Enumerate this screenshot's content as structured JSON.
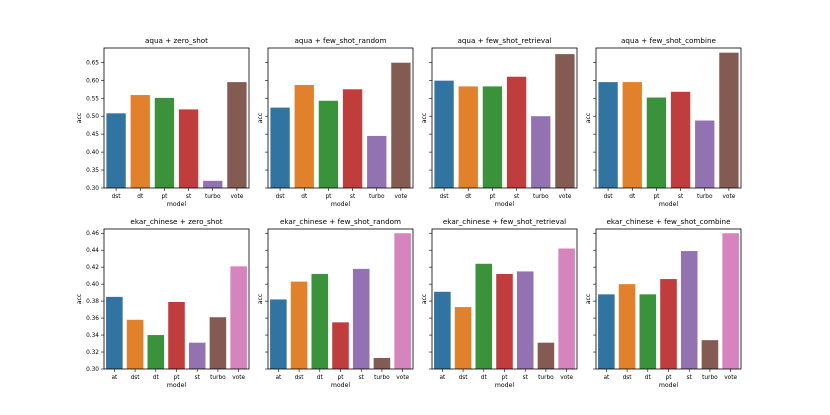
{
  "colors": [
    "#3274a1",
    "#e1812c",
    "#3a923a",
    "#c03d3e",
    "#9372b2",
    "#845b53",
    "#d684bd"
  ],
  "chart_data": [
    {
      "type": "bar",
      "title": "aqua + zero_shot",
      "xlabel": "model",
      "ylabel": "acc",
      "categories": [
        "dst",
        "dt",
        "pt",
        "st",
        "turbo",
        "vote"
      ],
      "values": [
        0.508,
        0.559,
        0.551,
        0.519,
        0.32,
        0.595
      ],
      "ylim": [
        0.3,
        0.69
      ],
      "yticks": [
        0.3,
        0.35,
        0.4,
        0.45,
        0.5,
        0.55,
        0.6,
        0.65
      ],
      "ytick_labels": [
        "0.30",
        "0.35",
        "0.40",
        "0.45",
        "0.50",
        "0.55",
        "0.60",
        "0.65"
      ],
      "show_yticklabels": true
    },
    {
      "type": "bar",
      "title": "aqua + few_shot_random",
      "xlabel": "model",
      "ylabel": "acc",
      "categories": [
        "dst",
        "dt",
        "pt",
        "st",
        "turbo",
        "vote"
      ],
      "values": [
        0.524,
        0.587,
        0.543,
        0.575,
        0.445,
        0.649
      ],
      "ylim": [
        0.3,
        0.69
      ],
      "yticks": [
        0.3,
        0.35,
        0.4,
        0.45,
        0.5,
        0.55,
        0.6,
        0.65
      ],
      "ytick_labels": [
        "0.30",
        "0.35",
        "0.40",
        "0.45",
        "0.50",
        "0.55",
        "0.60",
        "0.65"
      ],
      "show_yticklabels": false
    },
    {
      "type": "bar",
      "title": "aqua + few_shot_retrieval",
      "xlabel": "model",
      "ylabel": "acc",
      "categories": [
        "dst",
        "dt",
        "pt",
        "st",
        "turbo",
        "vote"
      ],
      "values": [
        0.599,
        0.583,
        0.583,
        0.61,
        0.5,
        0.673
      ],
      "ylim": [
        0.3,
        0.69
      ],
      "yticks": [
        0.3,
        0.35,
        0.4,
        0.45,
        0.5,
        0.55,
        0.6,
        0.65
      ],
      "ytick_labels": [
        "0.30",
        "0.35",
        "0.40",
        "0.45",
        "0.50",
        "0.55",
        "0.60",
        "0.65"
      ],
      "show_yticklabels": false
    },
    {
      "type": "bar",
      "title": "aqua + few_shot_combine",
      "xlabel": "model",
      "ylabel": "acc",
      "categories": [
        "dst",
        "dt",
        "pt",
        "st",
        "turbo",
        "vote"
      ],
      "values": [
        0.595,
        0.595,
        0.552,
        0.568,
        0.488,
        0.677
      ],
      "ylim": [
        0.3,
        0.69
      ],
      "yticks": [
        0.3,
        0.35,
        0.4,
        0.45,
        0.5,
        0.55,
        0.6,
        0.65
      ],
      "ytick_labels": [
        "0.30",
        "0.35",
        "0.40",
        "0.45",
        "0.50",
        "0.55",
        "0.60",
        "0.65"
      ],
      "show_yticklabels": false
    },
    {
      "type": "bar",
      "title": "ekar_chinese + zero_shot",
      "xlabel": "model",
      "ylabel": "acc",
      "categories": [
        "at",
        "dst",
        "dt",
        "pt",
        "st",
        "turbo",
        "vote"
      ],
      "values": [
        0.385,
        0.358,
        0.34,
        0.379,
        0.331,
        0.361,
        0.421
      ],
      "ylim": [
        0.3,
        0.465
      ],
      "yticks": [
        0.3,
        0.32,
        0.34,
        0.36,
        0.38,
        0.4,
        0.42,
        0.44,
        0.46
      ],
      "ytick_labels": [
        "0.30",
        "0.32",
        "0.34",
        "0.36",
        "0.38",
        "0.40",
        "0.42",
        "0.44",
        "0.46"
      ],
      "show_yticklabels": true
    },
    {
      "type": "bar",
      "title": "ekar_chinese + few_shot_random",
      "xlabel": "model",
      "ylabel": "acc",
      "categories": [
        "at",
        "dst",
        "dt",
        "pt",
        "st",
        "turbo",
        "vote"
      ],
      "values": [
        0.382,
        0.403,
        0.412,
        0.355,
        0.418,
        0.313,
        0.46
      ],
      "ylim": [
        0.3,
        0.465
      ],
      "yticks": [
        0.3,
        0.32,
        0.34,
        0.36,
        0.38,
        0.4,
        0.42,
        0.44,
        0.46
      ],
      "ytick_labels": [
        "0.30",
        "0.32",
        "0.34",
        "0.36",
        "0.38",
        "0.40",
        "0.42",
        "0.44",
        "0.46"
      ],
      "show_yticklabels": false
    },
    {
      "type": "bar",
      "title": "ekar_chinese + few_shot_retrieval",
      "xlabel": "model",
      "ylabel": "acc",
      "categories": [
        "at",
        "dst",
        "dt",
        "pt",
        "st",
        "turbo",
        "vote"
      ],
      "values": [
        0.391,
        0.373,
        0.424,
        0.412,
        0.415,
        0.331,
        0.442
      ],
      "ylim": [
        0.3,
        0.465
      ],
      "yticks": [
        0.3,
        0.32,
        0.34,
        0.36,
        0.38,
        0.4,
        0.42,
        0.44,
        0.46
      ],
      "ytick_labels": [
        "0.30",
        "0.32",
        "0.34",
        "0.36",
        "0.38",
        "0.40",
        "0.42",
        "0.44",
        "0.46"
      ],
      "show_yticklabels": false
    },
    {
      "type": "bar",
      "title": "ekar_chinese + few_shot_combine",
      "xlabel": "model",
      "ylabel": "acc",
      "categories": [
        "at",
        "dst",
        "dt",
        "pt",
        "st",
        "turbo",
        "vote"
      ],
      "values": [
        0.388,
        0.4,
        0.388,
        0.406,
        0.439,
        0.334,
        0.46
      ],
      "ylim": [
        0.3,
        0.465
      ],
      "yticks": [
        0.3,
        0.32,
        0.34,
        0.36,
        0.38,
        0.4,
        0.42,
        0.44,
        0.46
      ],
      "ytick_labels": [
        "0.30",
        "0.32",
        "0.34",
        "0.36",
        "0.38",
        "0.40",
        "0.42",
        "0.44",
        "0.46"
      ],
      "show_yticklabels": false
    }
  ]
}
